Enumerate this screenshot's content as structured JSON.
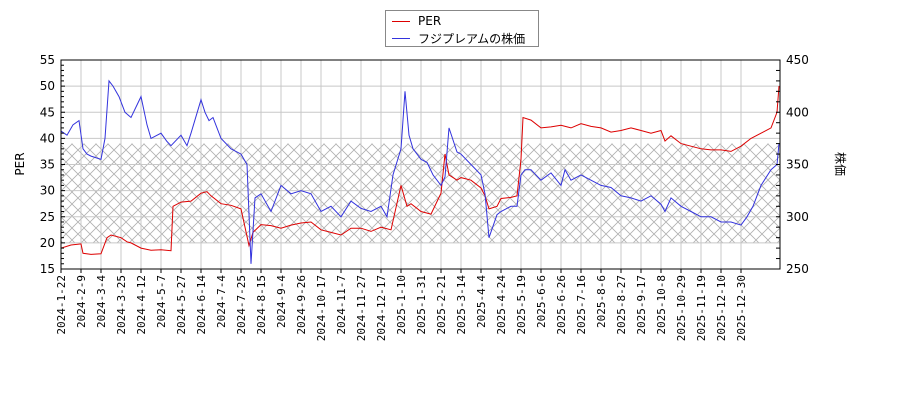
{
  "legend": {
    "items": [
      {
        "label": "PER",
        "color": "#dd0000"
      },
      {
        "label": "フジプレアムの株価",
        "color": "#3333dd"
      }
    ]
  },
  "axes": {
    "left_label": "PER",
    "right_label": "株価"
  },
  "chart_data": {
    "type": "line",
    "title": "",
    "xlabel": "",
    "ylabel": "PER",
    "y2label": "株価",
    "ylim": [
      15,
      55
    ],
    "y2lim": [
      250,
      450
    ],
    "yticks": [
      15,
      20,
      25,
      30,
      35,
      40,
      45,
      50,
      55
    ],
    "y2ticks": [
      250,
      300,
      350,
      400,
      450
    ],
    "grid": true,
    "legend_position": "top-center",
    "shaded_band": {
      "axis": "left",
      "from": 20,
      "to": 39,
      "style": "crosshatch"
    },
    "categories": [
      "2024-1-22",
      "2024-2-9",
      "2024-3-4",
      "2024-3-25",
      "2024-4-12",
      "2024-5-7",
      "2024-5-27",
      "2024-6-14",
      "2024-7-4",
      "2024-7-25",
      "2024-8-15",
      "2024-9-4",
      "2024-9-26",
      "2024-10-17",
      "2024-11-7",
      "2024-11-27",
      "2024-12-17",
      "2025-1-10",
      "2025-1-31",
      "2025-2-21",
      "2025-3-14",
      "2025-4-4",
      "2025-4-24",
      "2025-5-19",
      "2025-6-6",
      "2025-6-26",
      "2025-7-16",
      "2025-8-6",
      "2025-8-27",
      "2025-9-17",
      "2025-10-8",
      "2025-10-29",
      "2025-11-19",
      "2025-12-10",
      "2025-12-30"
    ],
    "series": [
      {
        "name": "PER",
        "axis": "left",
        "color": "#dd0000",
        "x": [
          0,
          0.5,
          1,
          1.1,
          1.5,
          2,
          2.3,
          2.5,
          3,
          3.3,
          3.5,
          4,
          4.5,
          5,
          5.5,
          5.6,
          6,
          6.5,
          7,
          7.3,
          7.5,
          8,
          8.5,
          9,
          9.4,
          9.6,
          10,
          10.5,
          11,
          11.5,
          12,
          12.5,
          13,
          13.5,
          14,
          14.5,
          15,
          15.5,
          16,
          16.5,
          17,
          17.3,
          17.5,
          18,
          18.5,
          19,
          19.2,
          19.4,
          19.8,
          20,
          20.5,
          21,
          21.2,
          21.4,
          21.8,
          22,
          22.5,
          22.8,
          23,
          23.1,
          23.5,
          24,
          24.5,
          25,
          25.5,
          26,
          26.5,
          27,
          27.5,
          28,
          28.5,
          29,
          29.5,
          30,
          30.2,
          30.5,
          31,
          31.5,
          32,
          32.5,
          33,
          33.5,
          34,
          34.5,
          35,
          35.5,
          35.8,
          35.9
        ],
        "values": [
          19.0,
          19.6,
          19.8,
          18.0,
          17.8,
          17.9,
          21.0,
          21.5,
          21.0,
          20.2,
          20.0,
          19.0,
          18.6,
          18.7,
          18.5,
          27.0,
          27.8,
          28.0,
          29.5,
          29.8,
          29.0,
          27.5,
          27.2,
          26.5,
          19.5,
          22.0,
          23.5,
          23.3,
          22.8,
          23.4,
          23.8,
          24.0,
          22.5,
          22.0,
          21.5,
          22.8,
          22.8,
          22.2,
          23.0,
          22.5,
          31.0,
          27.0,
          27.5,
          26.0,
          25.5,
          29.5,
          37.0,
          33.0,
          32.0,
          32.5,
          32.0,
          30.5,
          29.0,
          26.5,
          27.0,
          28.5,
          28.7,
          29.0,
          36.0,
          44.0,
          43.5,
          42.0,
          42.2,
          42.5,
          42.0,
          42.8,
          42.3,
          42.0,
          41.2,
          41.5,
          42.0,
          41.5,
          41.0,
          41.5,
          39.5,
          40.5,
          39.0,
          38.5,
          38.0,
          37.8,
          37.8,
          37.5,
          38.5,
          40.0,
          41.0,
          42.0,
          45.0,
          50.0
        ]
      },
      {
        "name": "フジプレアムの株価",
        "axis": "right",
        "color": "#3333dd",
        "x": [
          0,
          0.3,
          0.6,
          0.9,
          1.1,
          1.3,
          1.5,
          2,
          2.2,
          2.4,
          2.6,
          2.9,
          3.2,
          3.5,
          4,
          4.3,
          4.5,
          5,
          5.3,
          5.5,
          6,
          6.3,
          6.5,
          7,
          7.2,
          7.4,
          7.6,
          8,
          8.5,
          9,
          9.3,
          9.5,
          9.7,
          10,
          10.5,
          11,
          11.5,
          12,
          12.5,
          13,
          13.5,
          14,
          14.5,
          15,
          15.5,
          16,
          16.3,
          16.6,
          17,
          17.2,
          17.4,
          17.6,
          18,
          18.3,
          18.6,
          19,
          19.2,
          19.4,
          19.8,
          20,
          20.5,
          21,
          21.2,
          21.4,
          21.8,
          22,
          22.5,
          22.8,
          23,
          23.2,
          23.5,
          24,
          24.5,
          25,
          25.2,
          25.5,
          26,
          26.5,
          27,
          27.5,
          28,
          28.5,
          29,
          29.5,
          30,
          30.2,
          30.5,
          31,
          31.5,
          32,
          32.5,
          33,
          33.5,
          34,
          34.3,
          34.6,
          35,
          35.5,
          35.8,
          35.9
        ],
        "values": [
          382,
          378,
          388,
          392,
          365,
          360,
          358,
          355,
          375,
          430,
          425,
          415,
          400,
          395,
          415,
          388,
          375,
          380,
          372,
          368,
          378,
          368,
          380,
          412,
          400,
          392,
          395,
          375,
          365,
          360,
          350,
          255,
          318,
          322,
          305,
          330,
          322,
          325,
          322,
          305,
          310,
          300,
          315,
          308,
          305,
          310,
          300,
          340,
          365,
          420,
          378,
          365,
          355,
          352,
          340,
          330,
          338,
          385,
          362,
          360,
          350,
          340,
          322,
          280,
          302,
          305,
          310,
          310,
          340,
          345,
          345,
          335,
          342,
          330,
          345,
          335,
          340,
          335,
          330,
          328,
          320,
          318,
          315,
          320,
          312,
          305,
          318,
          310,
          305,
          300,
          300,
          295,
          295,
          292,
          300,
          310,
          330,
          345,
          350,
          370
        ]
      }
    ]
  }
}
